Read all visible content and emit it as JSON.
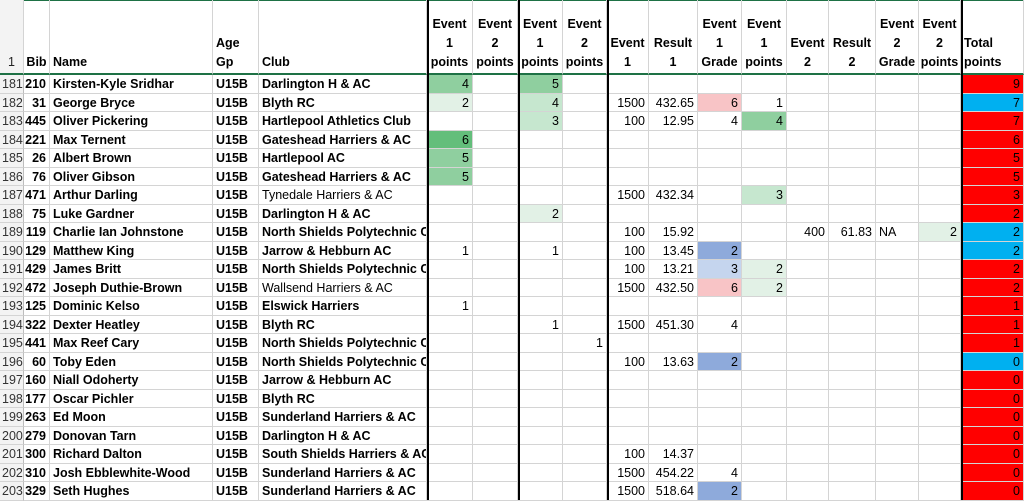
{
  "colors": {
    "green_dark": "#63be7b",
    "green_mid": "#8fcf9f",
    "green_light": "#c6e7cf",
    "green_faint": "#e2f1e6",
    "red_light": "#f8c4c6",
    "blue_dark": "#8eaadb",
    "blue_light": "#c5d5ee",
    "total_red": "#ff0000",
    "total_blue": "#00b0f0"
  },
  "headers": {
    "row_num": "1",
    "bib": "Bib",
    "name": "Name",
    "age": "Age Gp",
    "club": "Club",
    "e1p": "Event\n1\npoints",
    "e2p": "Event\n2\npoints",
    "e1p_b": "Event\n1\npoints",
    "e2p_b": "Event\n2\npoints",
    "event1": "Event\n1",
    "result1": "Result\n1",
    "e1grade": "Event\n1\nGrade",
    "e1points": "Event\n1\npoints",
    "event2": "Event\n2",
    "result2": "Result\n2",
    "e2grade": "Event\n2\nGrade",
    "e2points": "Event\n2\npoints",
    "total": "Total\npoints"
  },
  "rows": [
    {
      "rn": "181",
      "bib": "210",
      "name": "Kirsten-Kyle Sridhar",
      "age": "U15B",
      "club": "Darlington H & AC",
      "club_bold": true,
      "p1": "4",
      "p1c": "green_mid",
      "p2": "",
      "p3": "5",
      "p3c": "green_mid",
      "p4": "",
      "ev1": "",
      "res1": "",
      "g1": "",
      "g1c": "",
      "pts1": "",
      "pts1c": "",
      "ev2": "",
      "res2": "",
      "g2": "",
      "pts2": "",
      "pts2c": "",
      "total": "9",
      "tc": "total_red"
    },
    {
      "rn": "182",
      "bib": "31",
      "name": "George Bryce",
      "age": "U15B",
      "club": "Blyth RC",
      "club_bold": true,
      "p1": "2",
      "p1c": "green_faint",
      "p2": "",
      "p3": "4",
      "p3c": "green_light",
      "p4": "",
      "ev1": "1500",
      "res1": "432.65",
      "g1": "6",
      "g1c": "red_light",
      "pts1": "1",
      "pts1c": "",
      "ev2": "",
      "res2": "",
      "g2": "",
      "pts2": "",
      "pts2c": "",
      "total": "7",
      "tc": "total_blue"
    },
    {
      "rn": "183",
      "bib": "445",
      "name": "Oliver Pickering",
      "age": "U15B",
      "club": "Hartlepool Athletics Club",
      "club_bold": true,
      "p1": "",
      "p1c": "",
      "p2": "",
      "p3": "3",
      "p3c": "green_light",
      "p4": "",
      "ev1": "100",
      "res1": "12.95",
      "g1": "4",
      "g1c": "",
      "pts1": "4",
      "pts1c": "green_mid",
      "ev2": "",
      "res2": "",
      "g2": "",
      "pts2": "",
      "pts2c": "",
      "total": "7",
      "tc": "total_red"
    },
    {
      "rn": "184",
      "bib": "221",
      "name": "Max Ternent",
      "age": "U15B",
      "club": "Gateshead Harriers & AC",
      "club_bold": true,
      "p1": "6",
      "p1c": "green_dark",
      "p2": "",
      "p3": "",
      "p3c": "",
      "p4": "",
      "ev1": "",
      "res1": "",
      "g1": "",
      "g1c": "",
      "pts1": "",
      "pts1c": "",
      "ev2": "",
      "res2": "",
      "g2": "",
      "pts2": "",
      "pts2c": "",
      "total": "6",
      "tc": "total_red"
    },
    {
      "rn": "185",
      "bib": "26",
      "name": "Albert Brown",
      "age": "U15B",
      "club": "Hartlepool AC",
      "club_bold": true,
      "p1": "5",
      "p1c": "green_mid",
      "p2": "",
      "p3": "",
      "p3c": "",
      "p4": "",
      "ev1": "",
      "res1": "",
      "g1": "",
      "g1c": "",
      "pts1": "",
      "pts1c": "",
      "ev2": "",
      "res2": "",
      "g2": "",
      "pts2": "",
      "pts2c": "",
      "total": "5",
      "tc": "total_red"
    },
    {
      "rn": "186",
      "bib": "76",
      "name": "Oliver Gibson",
      "age": "U15B",
      "club": "Gateshead Harriers & AC",
      "club_bold": true,
      "p1": "5",
      "p1c": "green_mid",
      "p2": "",
      "p3": "",
      "p3c": "",
      "p4": "",
      "ev1": "",
      "res1": "",
      "g1": "",
      "g1c": "",
      "pts1": "",
      "pts1c": "",
      "ev2": "",
      "res2": "",
      "g2": "",
      "pts2": "",
      "pts2c": "",
      "total": "5",
      "tc": "total_red"
    },
    {
      "rn": "187",
      "bib": "471",
      "name": "Arthur Darling",
      "age": "U15B",
      "club": "Tynedale Harriers & AC",
      "club_bold": false,
      "p1": "",
      "p1c": "",
      "p2": "",
      "p3": "",
      "p3c": "",
      "p4": "",
      "ev1": "1500",
      "res1": "432.34",
      "g1": "",
      "g1c": "",
      "pts1": "3",
      "pts1c": "green_light",
      "ev2": "",
      "res2": "",
      "g2": "",
      "pts2": "",
      "pts2c": "",
      "total": "3",
      "tc": "total_red"
    },
    {
      "rn": "188",
      "bib": "75",
      "name": "Luke Gardner",
      "age": "U15B",
      "club": "Darlington H & AC",
      "club_bold": true,
      "p1": "",
      "p1c": "",
      "p2": "",
      "p3": "2",
      "p3c": "green_faint",
      "p4": "",
      "ev1": "",
      "res1": "",
      "g1": "",
      "g1c": "",
      "pts1": "",
      "pts1c": "",
      "ev2": "",
      "res2": "",
      "g2": "",
      "pts2": "",
      "pts2c": "",
      "total": "2",
      "tc": "total_red"
    },
    {
      "rn": "189",
      "bib": "119",
      "name": "Charlie Ian Johnstone",
      "age": "U15B",
      "club": "North Shields Polytechnic Club",
      "club_bold": true,
      "p1": "",
      "p1c": "",
      "p2": "",
      "p3": "",
      "p3c": "",
      "p4": "",
      "ev1": "100",
      "res1": "15.92",
      "g1": "",
      "g1c": "",
      "pts1": "",
      "pts1c": "",
      "ev2": "400",
      "res2": "61.83",
      "g2": "NA",
      "pts2": "2",
      "pts2c": "green_faint",
      "total": "2",
      "tc": "total_blue"
    },
    {
      "rn": "190",
      "bib": "129",
      "name": "Matthew King",
      "age": "U15B",
      "club": "Jarrow & Hebburn AC",
      "club_bold": true,
      "p1": "1",
      "p1c": "",
      "p2": "",
      "p3": "1",
      "p3c": "",
      "p4": "",
      "ev1": "100",
      "res1": "13.45",
      "g1": "2",
      "g1c": "blue_dark",
      "pts1": "",
      "pts1c": "",
      "ev2": "",
      "res2": "",
      "g2": "",
      "pts2": "",
      "pts2c": "",
      "total": "2",
      "tc": "total_blue"
    },
    {
      "rn": "191",
      "bib": "429",
      "name": "James Britt",
      "age": "U15B",
      "club": "North Shields Polytechnic Club",
      "club_bold": true,
      "p1": "",
      "p1c": "",
      "p2": "",
      "p3": "",
      "p3c": "",
      "p4": "",
      "ev1": "100",
      "res1": "13.21",
      "g1": "3",
      "g1c": "blue_light",
      "pts1": "2",
      "pts1c": "green_faint",
      "ev2": "",
      "res2": "",
      "g2": "",
      "pts2": "",
      "pts2c": "",
      "total": "2",
      "tc": "total_red"
    },
    {
      "rn": "192",
      "bib": "472",
      "name": "Joseph Duthie-Brown",
      "age": "U15B",
      "club": "Wallsend Harriers & AC",
      "club_bold": false,
      "p1": "",
      "p1c": "",
      "p2": "",
      "p3": "",
      "p3c": "",
      "p4": "",
      "ev1": "1500",
      "res1": "432.50",
      "g1": "6",
      "g1c": "red_light",
      "pts1": "2",
      "pts1c": "green_faint",
      "ev2": "",
      "res2": "",
      "g2": "",
      "pts2": "",
      "pts2c": "",
      "total": "2",
      "tc": "total_red"
    },
    {
      "rn": "193",
      "bib": "125",
      "name": "Dominic Kelso",
      "age": "U15B",
      "club": "Elswick Harriers",
      "club_bold": true,
      "p1": "1",
      "p1c": "",
      "p2": "",
      "p3": "",
      "p3c": "",
      "p4": "",
      "ev1": "",
      "res1": "",
      "g1": "",
      "g1c": "",
      "pts1": "",
      "pts1c": "",
      "ev2": "",
      "res2": "",
      "g2": "",
      "pts2": "",
      "pts2c": "",
      "total": "1",
      "tc": "total_red"
    },
    {
      "rn": "194",
      "bib": "322",
      "name": "Dexter Heatley",
      "age": "U15B",
      "club": "Blyth RC",
      "club_bold": true,
      "p1": "",
      "p1c": "",
      "p2": "",
      "p3": "1",
      "p3c": "",
      "p4": "",
      "ev1": "1500",
      "res1": "451.30",
      "g1": "4",
      "g1c": "",
      "pts1": "",
      "pts1c": "",
      "ev2": "",
      "res2": "",
      "g2": "",
      "pts2": "",
      "pts2c": "",
      "total": "1",
      "tc": "total_red"
    },
    {
      "rn": "195",
      "bib": "441",
      "name": "Max Reef Cary",
      "age": "U15B",
      "club": "North Shields Polytechnic Club",
      "club_bold": true,
      "p1": "",
      "p1c": "",
      "p2": "",
      "p3": "",
      "p3c": "",
      "p4": "1",
      "ev1": "",
      "res1": "",
      "g1": "",
      "g1c": "",
      "pts1": "",
      "pts1c": "",
      "ev2": "",
      "res2": "",
      "g2": "",
      "pts2": "",
      "pts2c": "",
      "total": "1",
      "tc": "total_red"
    },
    {
      "rn": "196",
      "bib": "60",
      "name": "Toby Eden",
      "age": "U15B",
      "club": "North Shields Polytechnic Club",
      "club_bold": true,
      "p1": "",
      "p1c": "",
      "p2": "",
      "p3": "",
      "p3c": "",
      "p4": "",
      "ev1": "100",
      "res1": "13.63",
      "g1": "2",
      "g1c": "blue_dark",
      "pts1": "",
      "pts1c": "",
      "ev2": "",
      "res2": "",
      "g2": "",
      "pts2": "",
      "pts2c": "",
      "total": "0",
      "tc": "total_blue"
    },
    {
      "rn": "197",
      "bib": "160",
      "name": "Niall Odoherty",
      "age": "U15B",
      "club": "Jarrow & Hebburn AC",
      "club_bold": true,
      "p1": "",
      "p1c": "",
      "p2": "",
      "p3": "",
      "p3c": "",
      "p4": "",
      "ev1": "",
      "res1": "",
      "g1": "",
      "g1c": "",
      "pts1": "",
      "pts1c": "",
      "ev2": "",
      "res2": "",
      "g2": "",
      "pts2": "",
      "pts2c": "",
      "total": "0",
      "tc": "total_red"
    },
    {
      "rn": "198",
      "bib": "177",
      "name": "Oscar Pichler",
      "age": "U15B",
      "club": "Blyth RC",
      "club_bold": true,
      "p1": "",
      "p1c": "",
      "p2": "",
      "p3": "",
      "p3c": "",
      "p4": "",
      "ev1": "",
      "res1": "",
      "g1": "",
      "g1c": "",
      "pts1": "",
      "pts1c": "",
      "ev2": "",
      "res2": "",
      "g2": "",
      "pts2": "",
      "pts2c": "",
      "total": "0",
      "tc": "total_red"
    },
    {
      "rn": "199",
      "bib": "263",
      "name": "Ed Moon",
      "age": "U15B",
      "club": "Sunderland Harriers & AC",
      "club_bold": true,
      "p1": "",
      "p1c": "",
      "p2": "",
      "p3": "",
      "p3c": "",
      "p4": "",
      "ev1": "",
      "res1": "",
      "g1": "",
      "g1c": "",
      "pts1": "",
      "pts1c": "",
      "ev2": "",
      "res2": "",
      "g2": "",
      "pts2": "",
      "pts2c": "",
      "total": "0",
      "tc": "total_red"
    },
    {
      "rn": "200",
      "bib": "279",
      "name": "Donovan Tarn",
      "age": "U15B",
      "club": "Darlington H & AC",
      "club_bold": true,
      "p1": "",
      "p1c": "",
      "p2": "",
      "p3": "",
      "p3c": "",
      "p4": "",
      "ev1": "",
      "res1": "",
      "g1": "",
      "g1c": "",
      "pts1": "",
      "pts1c": "",
      "ev2": "",
      "res2": "",
      "g2": "",
      "pts2": "",
      "pts2c": "",
      "total": "0",
      "tc": "total_red"
    },
    {
      "rn": "201",
      "bib": "300",
      "name": "Richard Dalton",
      "age": "U15B",
      "club": "South Shields Harriers & AC",
      "club_bold": true,
      "p1": "",
      "p1c": "",
      "p2": "",
      "p3": "",
      "p3c": "",
      "p4": "",
      "ev1": "100",
      "res1": "14.37",
      "g1": "",
      "g1c": "",
      "pts1": "",
      "pts1c": "",
      "ev2": "",
      "res2": "",
      "g2": "",
      "pts2": "",
      "pts2c": "",
      "total": "0",
      "tc": "total_red"
    },
    {
      "rn": "202",
      "bib": "310",
      "name": "Josh Ebblewhite-Wood",
      "age": "U15B",
      "club": "Sunderland Harriers & AC",
      "club_bold": true,
      "p1": "",
      "p1c": "",
      "p2": "",
      "p3": "",
      "p3c": "",
      "p4": "",
      "ev1": "1500",
      "res1": "454.22",
      "g1": "4",
      "g1c": "",
      "pts1": "",
      "pts1c": "",
      "ev2": "",
      "res2": "",
      "g2": "",
      "pts2": "",
      "pts2c": "",
      "total": "0",
      "tc": "total_red"
    },
    {
      "rn": "203",
      "bib": "329",
      "name": "Seth Hughes",
      "age": "U15B",
      "club": "Sunderland Harriers & AC",
      "club_bold": true,
      "p1": "",
      "p1c": "",
      "p2": "",
      "p3": "",
      "p3c": "",
      "p4": "",
      "ev1": "1500",
      "res1": "518.64",
      "g1": "2",
      "g1c": "blue_dark",
      "pts1": "",
      "pts1c": "",
      "ev2": "",
      "res2": "",
      "g2": "",
      "pts2": "",
      "pts2c": "",
      "total": "0",
      "tc": "total_red"
    }
  ]
}
